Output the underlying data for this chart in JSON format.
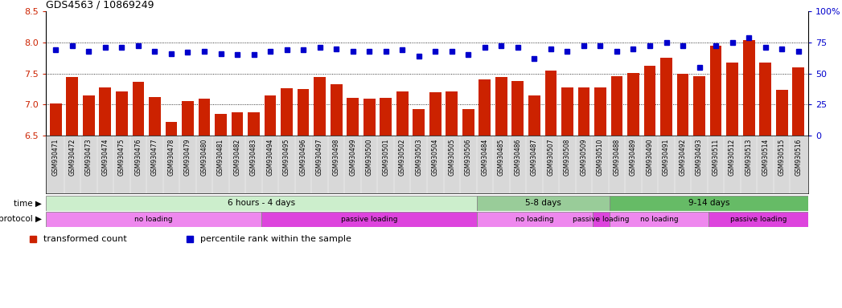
{
  "title": "GDS4563 / 10869249",
  "samples": [
    "GSM930471",
    "GSM930472",
    "GSM930473",
    "GSM930474",
    "GSM930475",
    "GSM930476",
    "GSM930477",
    "GSM930478",
    "GSM930479",
    "GSM930480",
    "GSM930481",
    "GSM930482",
    "GSM930483",
    "GSM930494",
    "GSM930495",
    "GSM930496",
    "GSM930497",
    "GSM930498",
    "GSM930499",
    "GSM930500",
    "GSM930501",
    "GSM930502",
    "GSM930503",
    "GSM930504",
    "GSM930505",
    "GSM930506",
    "GSM930484",
    "GSM930485",
    "GSM930486",
    "GSM930487",
    "GSM930507",
    "GSM930508",
    "GSM930509",
    "GSM930510",
    "GSM930488",
    "GSM930489",
    "GSM930490",
    "GSM930491",
    "GSM930492",
    "GSM930493",
    "GSM930511",
    "GSM930512",
    "GSM930513",
    "GSM930514",
    "GSM930515",
    "GSM930516"
  ],
  "bar_values": [
    7.01,
    7.44,
    7.15,
    7.28,
    7.21,
    7.37,
    7.12,
    6.72,
    7.06,
    7.1,
    6.85,
    6.87,
    6.88,
    7.14,
    7.26,
    7.25,
    7.44,
    7.32,
    7.11,
    7.1,
    7.11,
    7.21,
    6.92,
    7.2,
    7.21,
    6.93,
    7.4,
    7.44,
    7.38,
    7.15,
    7.55,
    7.28,
    7.27,
    7.28,
    7.46,
    7.51,
    7.62,
    7.75,
    7.49,
    7.46,
    7.95,
    7.68,
    8.04,
    7.67,
    7.23,
    7.6
  ],
  "percentile_values": [
    69,
    72,
    68,
    71,
    71,
    72,
    68,
    66,
    67,
    68,
    66,
    65,
    65,
    68,
    69,
    69,
    71,
    70,
    68,
    68,
    68,
    69,
    64,
    68,
    68,
    65,
    71,
    72,
    71,
    62,
    70,
    68,
    72,
    72,
    68,
    70,
    72,
    75,
    72,
    55,
    72,
    75,
    79,
    71,
    70,
    68
  ],
  "bar_color": "#cc2200",
  "percentile_color": "#0000cc",
  "ymin": 6.5,
  "ymax": 8.5,
  "ylim_right": [
    0,
    100
  ],
  "yticks_left": [
    6.5,
    7.0,
    7.5,
    8.0,
    8.5
  ],
  "yticks_right": [
    0,
    25,
    50,
    75,
    100
  ],
  "ytick_labels_right": [
    "0",
    "25",
    "50",
    "75",
    "100%"
  ],
  "grid_values": [
    7.0,
    7.5,
    8.0
  ],
  "time_groups": [
    {
      "label": "6 hours - 4 days",
      "start": 0,
      "end": 25,
      "color": "#cceecc"
    },
    {
      "label": "5-8 days",
      "start": 26,
      "end": 33,
      "color": "#99cc99"
    },
    {
      "label": "9-14 days",
      "start": 34,
      "end": 45,
      "color": "#66bb66"
    }
  ],
  "protocol_groups": [
    {
      "label": "no loading",
      "start": 0,
      "end": 12,
      "color": "#ee88ee"
    },
    {
      "label": "passive loading",
      "start": 13,
      "end": 25,
      "color": "#dd44dd"
    },
    {
      "label": "no loading",
      "start": 26,
      "end": 32,
      "color": "#ee88ee"
    },
    {
      "label": "passive loading",
      "start": 33,
      "end": 33,
      "color": "#dd44dd"
    },
    {
      "label": "no loading",
      "start": 34,
      "end": 39,
      "color": "#ee88ee"
    },
    {
      "label": "passive loading",
      "start": 40,
      "end": 45,
      "color": "#dd44dd"
    }
  ],
  "legend_items": [
    {
      "label": "transformed count",
      "color": "#cc2200"
    },
    {
      "label": "percentile rank within the sample",
      "color": "#0000cc"
    }
  ],
  "n_samples": 46,
  "xtick_bg": "#d8d8d8"
}
